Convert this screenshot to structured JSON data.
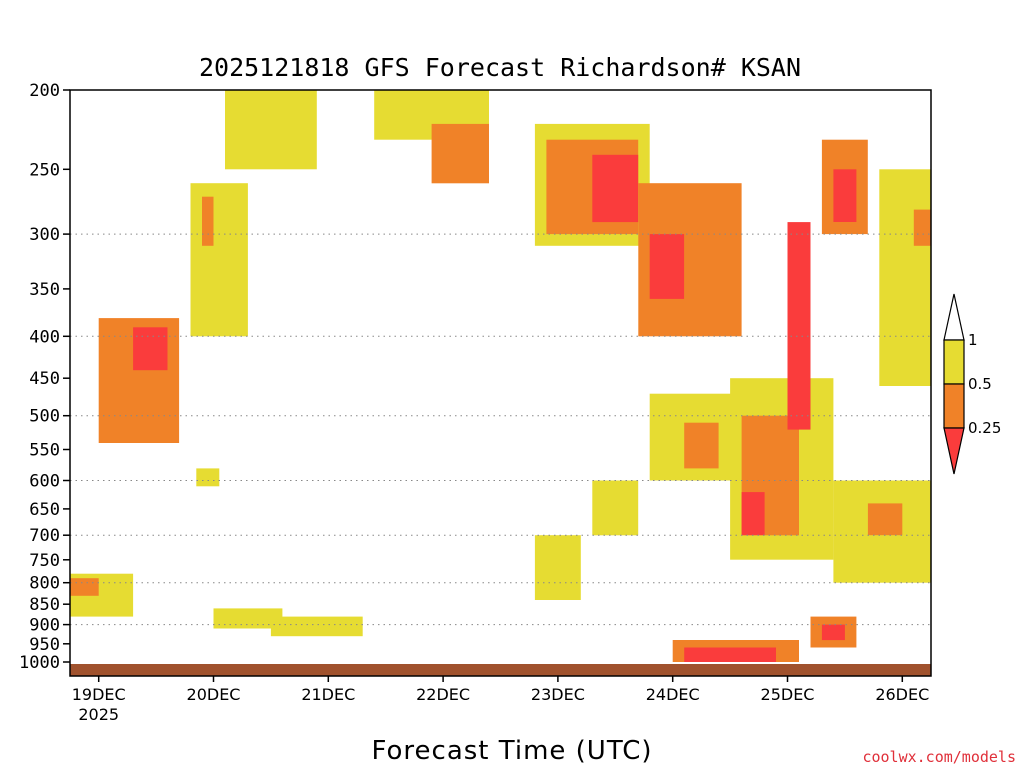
{
  "chart_data": {
    "type": "heatmap",
    "title": "2025121818 GFS Forecast Richardson# KSAN",
    "xlabel": "Forecast Time (UTC)",
    "ylabel": "",
    "watermark": "coolwx.com/models",
    "y_scale": "log-pressure (inverted)",
    "y_range": [
      1000,
      200
    ],
    "y_ticks": [
      "200",
      "250",
      "300",
      "350",
      "400",
      "450",
      "500",
      "550",
      "600",
      "650",
      "700",
      "750",
      "800",
      "850",
      "900",
      "950",
      "1000"
    ],
    "y_gridlines": [
      300,
      400,
      500,
      600,
      700,
      800,
      900
    ],
    "x_ticks": [
      {
        "label": "19DEC",
        "sub": "2025",
        "day": 19
      },
      {
        "label": "20DEC",
        "sub": "",
        "day": 20
      },
      {
        "label": "21DEC",
        "sub": "",
        "day": 21
      },
      {
        "label": "22DEC",
        "sub": "",
        "day": 22
      },
      {
        "label": "23DEC",
        "sub": "",
        "day": 23
      },
      {
        "label": "24DEC",
        "sub": "",
        "day": 24
      },
      {
        "label": "25DEC",
        "sub": "",
        "day": 25
      },
      {
        "label": "26DEC",
        "sub": "",
        "day": 26
      }
    ],
    "x_range_days": [
      18.75,
      26.25
    ],
    "legend": {
      "placement": "right",
      "levels": [
        "1",
        "0.5",
        "0.25"
      ],
      "bins": [
        {
          "range": "> 1",
          "color": "#ffffff"
        },
        {
          "range": "0.5 - 1",
          "color": "#e6dc32"
        },
        {
          "range": "0.25 - 0.5",
          "color": "#f08228"
        },
        {
          "range": "< 0.25",
          "color": "#fa3c3c"
        }
      ]
    },
    "colors": {
      "yellow": "#e6dc32",
      "orange": "#f08228",
      "red": "#fa3c3c",
      "ground": "#a0522d"
    },
    "regions": [
      {
        "name": "low-level-layer-19dec",
        "t": [
          18.75,
          19.3
        ],
        "p": [
          780,
          880
        ],
        "bin": "yellow"
      },
      {
        "name": "low-level-layer-19dec-core",
        "t": [
          18.75,
          19.0
        ],
        "p": [
          790,
          830
        ],
        "bin": "orange"
      },
      {
        "name": "rising-band-19dec",
        "t": [
          19.0,
          19.7
        ],
        "p": [
          380,
          540
        ],
        "bin": "orange"
      },
      {
        "name": "rising-band-19dec-core",
        "t": [
          19.3,
          19.6
        ],
        "p": [
          390,
          440
        ],
        "bin": "red"
      },
      {
        "name": "mid-patch-20dec",
        "t": [
          19.85,
          20.05
        ],
        "p": [
          580,
          610
        ],
        "bin": "yellow"
      },
      {
        "name": "upper-band-20dec",
        "t": [
          19.8,
          20.3
        ],
        "p": [
          260,
          400
        ],
        "bin": "yellow"
      },
      {
        "name": "upper-band-20dec-core",
        "t": [
          19.9,
          20.0
        ],
        "p": [
          270,
          310
        ],
        "bin": "orange"
      },
      {
        "name": "low-band-20dec",
        "t": [
          20.0,
          20.6
        ],
        "p": [
          860,
          910
        ],
        "bin": "yellow"
      },
      {
        "name": "top-patches-20dec",
        "t": [
          20.1,
          20.9
        ],
        "p": [
          200,
          250
        ],
        "bin": "yellow"
      },
      {
        "name": "low-band-21dec",
        "t": [
          20.5,
          21.3
        ],
        "p": [
          880,
          930
        ],
        "bin": "yellow"
      },
      {
        "name": "top-patches-22dec",
        "t": [
          21.4,
          22.4
        ],
        "p": [
          200,
          230
        ],
        "bin": "yellow"
      },
      {
        "name": "upper-patch-22dec",
        "t": [
          21.9,
          22.4
        ],
        "p": [
          220,
          260
        ],
        "bin": "orange"
      },
      {
        "name": "mid-patch-23dec",
        "t": [
          22.8,
          23.2
        ],
        "p": [
          700,
          840
        ],
        "bin": "yellow"
      },
      {
        "name": "upper-band-23dec",
        "t": [
          22.8,
          23.8
        ],
        "p": [
          220,
          310
        ],
        "bin": "yellow"
      },
      {
        "name": "upper-band-23dec-core",
        "t": [
          22.9,
          23.7
        ],
        "p": [
          230,
          300
        ],
        "bin": "orange"
      },
      {
        "name": "upper-band-23dec-red",
        "t": [
          23.3,
          23.7
        ],
        "p": [
          240,
          290
        ],
        "bin": "red"
      },
      {
        "name": "mid-band-23dec",
        "t": [
          23.3,
          23.7
        ],
        "p": [
          600,
          700
        ],
        "bin": "yellow"
      },
      {
        "name": "upper-band-24dec",
        "t": [
          23.7,
          24.6
        ],
        "p": [
          260,
          400
        ],
        "bin": "orange"
      },
      {
        "name": "upper-band-24dec-red",
        "t": [
          23.8,
          24.1
        ],
        "p": [
          300,
          360
        ],
        "bin": "red"
      },
      {
        "name": "mid-band-24dec",
        "t": [
          23.8,
          24.8
        ],
        "p": [
          470,
          600
        ],
        "bin": "yellow"
      },
      {
        "name": "mid-band-24dec-core",
        "t": [
          24.1,
          24.4
        ],
        "p": [
          510,
          580
        ],
        "bin": "orange"
      },
      {
        "name": "low-band-24dec",
        "t": [
          24.0,
          25.1
        ],
        "p": [
          940,
          1000
        ],
        "bin": "orange"
      },
      {
        "name": "low-band-24dec-red",
        "t": [
          24.1,
          24.9
        ],
        "p": [
          960,
          1000
        ],
        "bin": "red"
      },
      {
        "name": "mid-band-25dec",
        "t": [
          24.5,
          25.4
        ],
        "p": [
          450,
          750
        ],
        "bin": "yellow"
      },
      {
        "name": "mid-band-25dec-core",
        "t": [
          24.6,
          25.1
        ],
        "p": [
          500,
          700
        ],
        "bin": "orange"
      },
      {
        "name": "mid-band-25dec-red",
        "t": [
          24.6,
          24.8
        ],
        "p": [
          620,
          700
        ],
        "bin": "red"
      },
      {
        "name": "upper-column-25dec",
        "t": [
          25.0,
          25.2
        ],
        "p": [
          290,
          520
        ],
        "bin": "red"
      },
      {
        "name": "upper-band-25dec",
        "t": [
          25.3,
          25.7
        ],
        "p": [
          230,
          300
        ],
        "bin": "orange"
      },
      {
        "name": "upper-band-25dec-red",
        "t": [
          25.4,
          25.6
        ],
        "p": [
          250,
          290
        ],
        "bin": "red"
      },
      {
        "name": "mid-band-26dec",
        "t": [
          25.4,
          26.25
        ],
        "p": [
          600,
          800
        ],
        "bin": "yellow"
      },
      {
        "name": "mid-band-26dec-core",
        "t": [
          25.7,
          26.0
        ],
        "p": [
          640,
          700
        ],
        "bin": "orange"
      },
      {
        "name": "low-patch-25dec",
        "t": [
          25.2,
          25.6
        ],
        "p": [
          880,
          960
        ],
        "bin": "orange"
      },
      {
        "name": "low-patch-25dec-red",
        "t": [
          25.3,
          25.5
        ],
        "p": [
          900,
          940
        ],
        "bin": "red"
      },
      {
        "name": "upper-band-26dec",
        "t": [
          25.8,
          26.25
        ],
        "p": [
          250,
          460
        ],
        "bin": "yellow"
      },
      {
        "name": "upper-band-26dec-core",
        "t": [
          26.1,
          26.25
        ],
        "p": [
          280,
          310
        ],
        "bin": "orange"
      }
    ]
  }
}
